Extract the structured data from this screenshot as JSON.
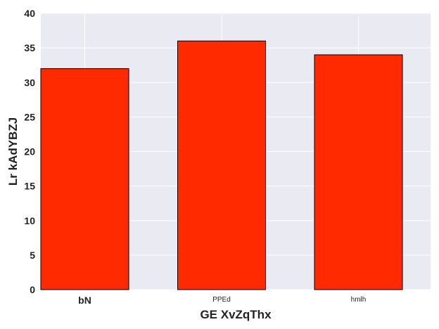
{
  "chart_data": {
    "type": "bar",
    "categories": [
      "bN",
      "PPEd",
      "hmlh"
    ],
    "values": [
      32,
      36,
      34
    ],
    "xlabel": "GE  XvZqThx",
    "ylabel": "Lr kAdYBZJ",
    "ylim": [
      0,
      40
    ],
    "yticks": [
      0,
      5,
      10,
      15,
      20,
      25,
      30,
      35,
      40
    ],
    "grid": true,
    "colors": {
      "bar": "#ff2a00",
      "bar_edge": "#000000",
      "plot_background": "#eaeaf2",
      "grid": "#ffffff"
    }
  }
}
